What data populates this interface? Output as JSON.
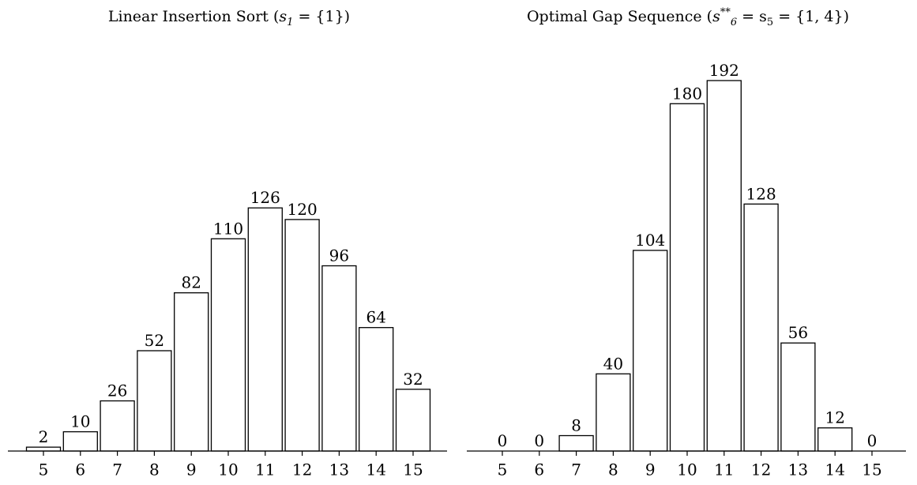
{
  "chart_data": [
    {
      "type": "bar",
      "title": {
        "text": "Linear Insertion Sort (",
        "math_base": "s",
        "math_sub": "1",
        "math_sup": "",
        "math_rest": " = {1})"
      },
      "xlabel": "",
      "ylabel": "",
      "categories": [
        "5",
        "6",
        "7",
        "8",
        "9",
        "10",
        "11",
        "12",
        "13",
        "14",
        "15"
      ],
      "values": [
        2,
        10,
        26,
        52,
        82,
        110,
        126,
        120,
        96,
        64,
        32
      ],
      "data_labels": [
        "2",
        "10",
        "26",
        "52",
        "82",
        "110",
        "126",
        "120",
        "96",
        "64",
        "32"
      ],
      "ylim": [
        0,
        192
      ],
      "grid": false,
      "legend": "none",
      "bar_fill": "#ffffff",
      "bar_stroke": "#000000"
    },
    {
      "type": "bar",
      "title": {
        "text": "Optimal Gap Sequence (",
        "math_base": "s",
        "math_sub": "6",
        "math_sup": "**",
        "math_rest": " = s",
        "math_sub2": "5",
        "math_tail": " = {1, 4})"
      },
      "xlabel": "",
      "ylabel": "",
      "categories": [
        "5",
        "6",
        "7",
        "8",
        "9",
        "10",
        "11",
        "12",
        "13",
        "14",
        "15"
      ],
      "values": [
        0,
        0,
        8,
        40,
        104,
        180,
        192,
        128,
        56,
        12,
        0
      ],
      "data_labels": [
        "0",
        "0",
        "8",
        "40",
        "104",
        "180",
        "192",
        "128",
        "56",
        "12",
        "0"
      ],
      "ylim": [
        0,
        192
      ],
      "grid": false,
      "legend": "none",
      "bar_fill": "#ffffff",
      "bar_stroke": "#000000"
    }
  ]
}
